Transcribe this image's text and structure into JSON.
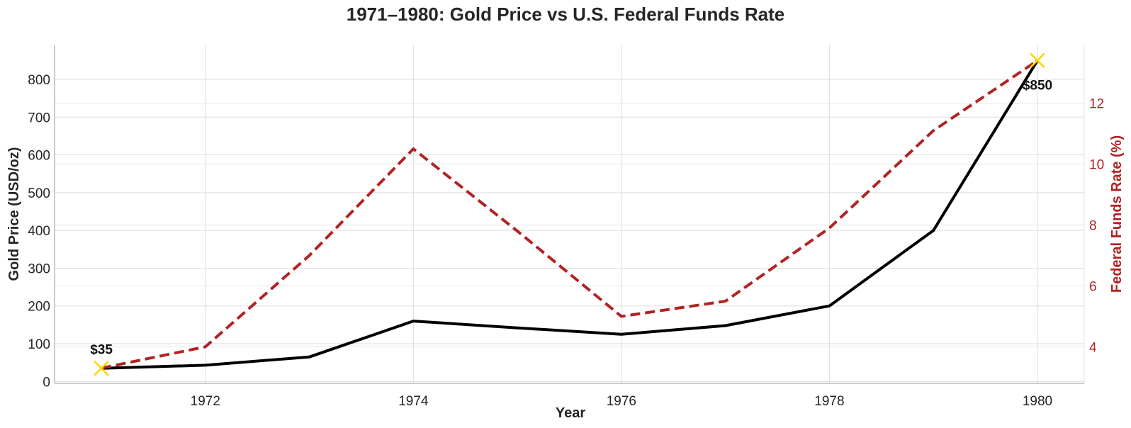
{
  "chart_data": {
    "type": "line",
    "title": "1971–1980: Gold Price vs U.S. Federal Funds Rate",
    "xlabel": "Year",
    "ylabel": "Gold Price (USD/oz)",
    "ylabel_right": "Federal Funds Rate (%)",
    "x": [
      1971,
      1972,
      1973,
      1974,
      1975,
      1976,
      1977,
      1978,
      1979,
      1980
    ],
    "xlim": [
      1970.55,
      1980.45
    ],
    "ylim": [
      -5,
      890
    ],
    "ylim_right": [
      2.8,
      13.9
    ],
    "x_ticks": [
      "1972",
      "1974",
      "1976",
      "1978",
      "1980"
    ],
    "y_ticks": [
      "0",
      "100",
      "200",
      "300",
      "400",
      "500",
      "600",
      "700",
      "800"
    ],
    "y_ticks_right": [
      "4",
      "6",
      "8",
      "10",
      "12"
    ],
    "grid": true,
    "series": [
      {
        "axis": "left",
        "color": "#000000",
        "style": "solid",
        "values": [
          35,
          43,
          65,
          160,
          142,
          125,
          148,
          200,
          400,
          850
        ]
      },
      {
        "axis": "right",
        "color": "#b22222",
        "style": "dashed",
        "values": [
          3.3,
          4.0,
          7.0,
          10.5,
          7.8,
          5.0,
          5.5,
          7.9,
          11.1,
          13.4
        ]
      }
    ],
    "markers": [
      {
        "x": 1971,
        "y": 35,
        "color": "#ffd700",
        "symbol": "x"
      },
      {
        "x": 1980,
        "y": 850,
        "color": "#ffd700",
        "symbol": "x"
      }
    ],
    "annotations": [
      {
        "x": 1971,
        "y": 35,
        "text": "$35",
        "position": "above"
      },
      {
        "x": 1980,
        "y": 850,
        "text": "$850",
        "position": "below"
      }
    ]
  }
}
